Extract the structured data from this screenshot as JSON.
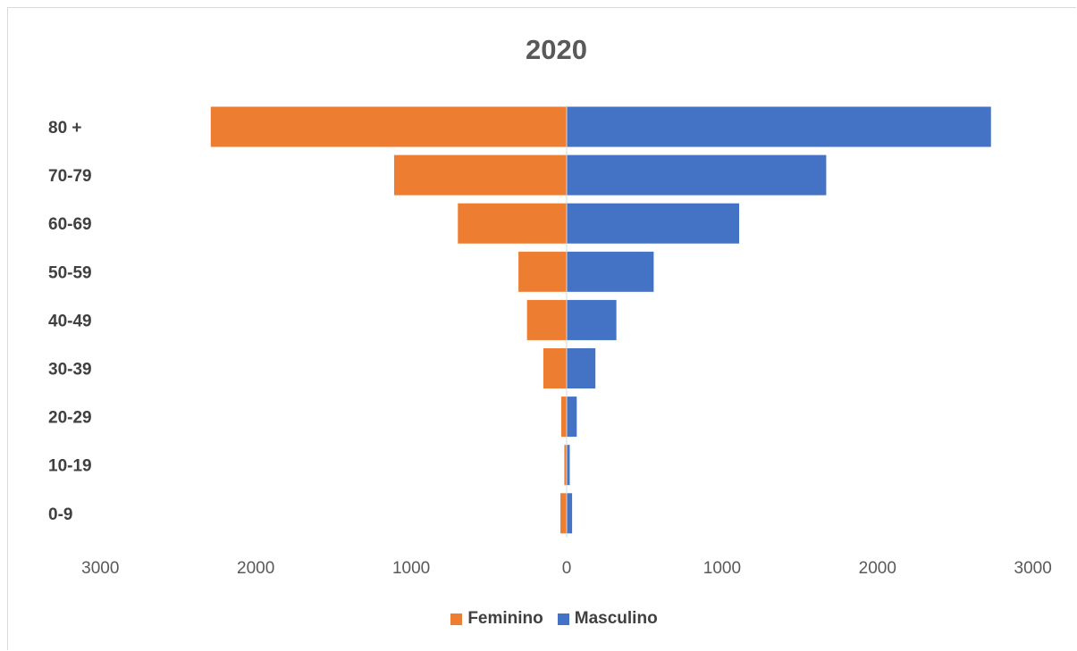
{
  "chart_data": {
    "type": "bar",
    "orientation": "horizontal",
    "title": "2020",
    "xlabel": "",
    "ylabel": "",
    "categories": [
      "80 +",
      "70-79",
      "60-69",
      "50-59",
      "40-49",
      "30-39",
      "20-29",
      "10-19",
      "0-9"
    ],
    "series": [
      {
        "name": "Feminino",
        "color": "#ED7D31",
        "values": [
          2290,
          1110,
          700,
          310,
          255,
          150,
          35,
          15,
          40
        ]
      },
      {
        "name": "Masculino",
        "color": "#4472C4",
        "values": [
          2730,
          1670,
          1110,
          560,
          320,
          185,
          65,
          20,
          35
        ]
      }
    ],
    "xlim": [
      -3000,
      3000
    ],
    "xticks": [
      -3000,
      -2000,
      -1000,
      0,
      1000,
      2000,
      3000
    ],
    "xtick_labels": [
      "3000",
      "2000",
      "1000",
      "0",
      "1000",
      "2000",
      "3000"
    ],
    "grid": false,
    "legend": "bottom"
  }
}
